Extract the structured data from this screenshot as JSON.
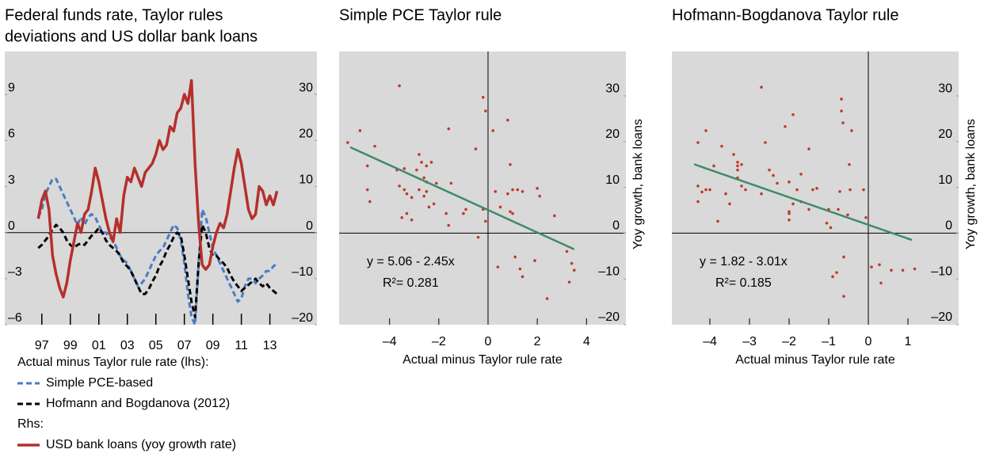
{
  "chart_data": [
    {
      "type": "line",
      "title": [
        "Federal funds rate, Taylor rules",
        "deviations and US dollar bank loans"
      ],
      "x": [
        1996.75,
        1997,
        1997.25,
        1997.5,
        1997.75,
        1998,
        1998.25,
        1998.5,
        1998.75,
        1999,
        1999.25,
        1999.5,
        1999.75,
        2000,
        2000.25,
        2000.5,
        2000.75,
        2001,
        2001.25,
        2001.5,
        2001.75,
        2002,
        2002.25,
        2002.5,
        2002.75,
        2003,
        2003.25,
        2003.5,
        2003.75,
        2004,
        2004.25,
        2004.5,
        2004.75,
        2005,
        2005.25,
        2005.5,
        2005.75,
        2006,
        2006.25,
        2006.5,
        2006.75,
        2007,
        2007.25,
        2007.5,
        2007.75,
        2008,
        2008.25,
        2008.5,
        2008.75,
        2009,
        2009.25,
        2009.5,
        2009.75,
        2010,
        2010.25,
        2010.5,
        2010.75,
        2011,
        2011.25,
        2011.5,
        2011.75,
        2012,
        2012.25,
        2012.5,
        2012.75,
        2013,
        2013.25,
        2013.5
      ],
      "xlim": [
        1994.4,
        2016.3
      ],
      "xticks": [
        {
          "value": 1997,
          "label": "97"
        },
        {
          "value": 1999,
          "label": "99"
        },
        {
          "value": 2001,
          "label": "01"
        },
        {
          "value": 2003,
          "label": "03"
        },
        {
          "value": 2005,
          "label": "05"
        },
        {
          "value": 2007,
          "label": "07"
        },
        {
          "value": 2009,
          "label": "09"
        },
        {
          "value": 2011,
          "label": "11"
        },
        {
          "value": 2013,
          "label": "13"
        }
      ],
      "ylim": [
        -6,
        11.8
      ],
      "yticks": [
        {
          "value": -6,
          "label": "–6"
        },
        {
          "value": -3,
          "label": "–3"
        },
        0,
        3,
        6,
        9
      ],
      "y2lim": [
        -20,
        39.3
      ],
      "y2ticks": [
        {
          "value": -20,
          "label": "–20"
        },
        {
          "value": -10,
          "label": "–10"
        },
        0,
        10,
        20,
        30
      ],
      "lhs_legend_title": "Actual minus Taylor rule rate (lhs):",
      "rhs_legend_title": "Rhs:",
      "series": [
        {
          "name": "Simple PCE-based",
          "color": "#4a7cc4",
          "dashed": true,
          "values": [
            1,
            1.5,
            2.5,
            3,
            3.5,
            3.5,
            3,
            2.5,
            2,
            1.5,
            1,
            0.5,
            1,
            0.5,
            1,
            1.2,
            1,
            0.5,
            0,
            0,
            -0.3,
            -0.5,
            -1,
            -1.5,
            -1.8,
            -2,
            -2.5,
            -3,
            -3.5,
            -3.3,
            -3,
            -2.5,
            -2,
            -1.5,
            -1.2,
            -1,
            -0.5,
            0,
            0.5,
            0.3,
            -0.5,
            -2,
            -4,
            -5.5,
            -6,
            -2,
            1.5,
            1,
            0,
            -1,
            -1.5,
            -2,
            -2.5,
            -3,
            -3.5,
            -4,
            -4.5,
            -4.3,
            -3.5,
            -3,
            -3,
            -3.3,
            -3,
            -2.8,
            -2.5,
            -2.5,
            -2.2,
            -2
          ]
        },
        {
          "name": "Hofmann and Bogdanova (2012)",
          "color": "#000000",
          "dashed": true,
          "values": [
            -1,
            -0.8,
            -0.5,
            -0.2,
            0.2,
            0.5,
            0.3,
            0,
            -0.5,
            -0.8,
            -1,
            -0.8,
            -0.7,
            -0.8,
            -0.5,
            -0.2,
            0,
            0.3,
            0,
            -0.5,
            -0.8,
            -1,
            -1.2,
            -1.5,
            -2,
            -2.2,
            -2.5,
            -3,
            -3.5,
            -4,
            -4,
            -3.7,
            -3.2,
            -2.8,
            -2.2,
            -1.8,
            -1.2,
            -0.8,
            -0.3,
            0,
            -0.2,
            -1.5,
            -3,
            -4.5,
            -5.5,
            -2,
            0.5,
            0,
            -1,
            -1.5,
            -1.5,
            -1.8,
            -2,
            -2.3,
            -2.8,
            -3.2,
            -3.5,
            -3.8,
            -3.6,
            -3.4,
            -3.2,
            -3,
            -3.3,
            -3.5,
            -3.3,
            -3.6,
            -3.8,
            -4
          ]
        },
        {
          "name": "USD bank loans (yoy growth rate)",
          "color": "#b5302b",
          "dashed": false,
          "axis": "y2",
          "values": [
            3,
            7,
            9,
            5,
            -5,
            -9,
            -12,
            -14,
            -11,
            -6,
            -2,
            2,
            0,
            4,
            5,
            9,
            14,
            11,
            7,
            3,
            0,
            -2,
            3,
            0,
            8,
            12,
            11,
            14,
            12,
            10,
            13,
            14,
            15,
            17,
            20,
            18,
            19,
            23,
            22,
            26,
            27,
            30,
            28,
            33,
            15,
            2,
            -7,
            -8,
            -7,
            -3,
            0,
            2,
            1,
            4,
            9,
            14,
            18,
            15,
            10,
            5,
            3,
            4,
            10,
            9,
            6,
            8,
            6,
            9
          ]
        }
      ]
    },
    {
      "type": "scatter",
      "title": "Simple PCE Taylor rule",
      "xlabel": "Actual minus Taylor rule rate",
      "ylabel": "Yoy growth, bank loans",
      "xlim": [
        -6.05,
        5.6
      ],
      "xticks": [
        {
          "value": -4,
          "label": "–4"
        },
        {
          "value": -2,
          "label": "–2"
        },
        0,
        2,
        4
      ],
      "ylim": [
        -20,
        39.7
      ],
      "yticks": [
        {
          "value": -20,
          "label": "–20"
        },
        {
          "value": -10,
          "label": "–10"
        },
        0,
        10,
        20,
        30
      ],
      "point_color": "#c0392b",
      "line_color": "#3f8a6c",
      "intercept": 5.06,
      "slope": -2.45,
      "fit_xrange": [
        -5.6,
        3.5
      ],
      "equation": "y = 5.06 - 2.45x",
      "r_squared_label": "R²= 0.281",
      "x": [
        -5.7,
        -5.2,
        -4.9,
        -4.9,
        -4.8,
        -4.6,
        -3.6,
        -3.7,
        -3.4,
        -3.6,
        -3.4,
        -3.3,
        -3.1,
        -3.5,
        -3.3,
        -3.1,
        -2.9,
        -2.8,
        -2.7,
        -2.5,
        -2.3,
        -2.6,
        -2.5,
        -2.8,
        -2.6,
        -2.5,
        -2.2,
        -2.4,
        -2.1,
        -1.7,
        -1.6,
        -1.5,
        -1.6,
        -1.0,
        -0.9,
        -0.5,
        -0.4,
        -0.2,
        -0.1,
        -0.2,
        -0.1,
        0.2,
        0.3,
        0.5,
        0.8,
        0.8,
        0.9,
        1.0,
        0.9,
        1.1,
        1.3,
        1.4,
        1.0,
        1.2,
        1.4,
        2.0,
        2.1,
        1.9,
        2.4,
        2.7,
        3.2,
        3.3,
        3.4,
        3.5,
        0.4
      ],
      "y": [
        19.8,
        22.4,
        14.7,
        9.5,
        6.9,
        19.0,
        32.2,
        13.8,
        14.1,
        10.3,
        9.5,
        8.6,
        7.8,
        3.4,
        4.3,
        2.9,
        13.8,
        17.2,
        15.5,
        14.7,
        15.5,
        12.1,
        11.2,
        9.5,
        8.1,
        9.1,
        6.4,
        5.7,
        10.9,
        4.3,
        1.7,
        10.9,
        22.8,
        4.3,
        5.2,
        18.4,
        -0.9,
        5.2,
        2.6,
        29.7,
        26.7,
        22.4,
        9.1,
        5.7,
        24.7,
        8.6,
        15.0,
        9.5,
        4.7,
        -5.2,
        -7.8,
        -9.5,
        4.3,
        9.5,
        9.1,
        9.8,
        8.1,
        -6.0,
        -14.3,
        3.8,
        -4.0,
        -10.7,
        -6.6,
        -8.1,
        -7.4
      ]
    },
    {
      "type": "scatter",
      "title": "Hofmann-Bogdanova Taylor rule",
      "xlabel": "Actual minus Taylor rule rate",
      "ylabel": "Yoy growth, bank loans",
      "xlim": [
        -4.96,
        2.28
      ],
      "xticks": [
        {
          "value": -4,
          "label": "–4"
        },
        {
          "value": -3,
          "label": "–3"
        },
        {
          "value": -2,
          "label": "–2"
        },
        {
          "value": -1,
          "label": "–1"
        },
        0,
        1
      ],
      "ylim": [
        -20,
        39.7
      ],
      "yticks": [
        {
          "value": -20,
          "label": "–20"
        },
        {
          "value": -10,
          "label": "–10"
        },
        0,
        10,
        20,
        30
      ],
      "point_color": "#c0392b",
      "line_color": "#3f8a6c",
      "intercept": 1.82,
      "slope": -3.01,
      "fit_xrange": [
        -4.4,
        1.1
      ],
      "equation": "y = 1.82 - 3.01x",
      "r_squared_label": "R²= 0.185",
      "x": [
        -4.3,
        -4.1,
        -4.2,
        -4.3,
        -4.3,
        -4.1,
        -4.0,
        -3.9,
        -3.8,
        -3.7,
        -3.6,
        -3.5,
        -3.4,
        -3.3,
        -3.3,
        -3.3,
        -3.2,
        -3.1,
        -3.2,
        -3.3,
        -2.7,
        -2.7,
        -2.6,
        -2.5,
        -2.4,
        -2.3,
        -2.1,
        -2.0,
        -2.0,
        -2.0,
        -2.0,
        -1.9,
        -1.8,
        -1.7,
        -1.9,
        -1.7,
        -1.5,
        -1.5,
        -1.4,
        -1.3,
        -1.0,
        -0.95,
        -0.9,
        -0.8,
        -0.76,
        -0.72,
        -0.68,
        -0.68,
        -0.64,
        -0.62,
        -0.62,
        -0.52,
        -0.48,
        -0.42,
        -0.46,
        -0.12,
        -0.06,
        0.08,
        0.28,
        0.32,
        0.58,
        0.87,
        1.17,
        -1.05
      ],
      "y": [
        19.8,
        22.4,
        9.0,
        10.3,
        6.9,
        9.5,
        9.5,
        14.7,
        2.6,
        19.0,
        8.6,
        6.4,
        17.2,
        15.5,
        14.7,
        12.1,
        10.3,
        9.5,
        15.0,
        13.8,
        31.9,
        8.6,
        19.8,
        13.8,
        12.6,
        10.9,
        23.3,
        4.3,
        4.7,
        2.9,
        11.2,
        6.4,
        9.5,
        12.9,
        25.9,
        6.9,
        18.4,
        5.2,
        9.5,
        9.8,
        5.2,
        1.2,
        -9.5,
        -8.6,
        5.2,
        9.1,
        29.3,
        26.7,
        24.1,
        -13.8,
        -5.2,
        4.0,
        15.0,
        22.4,
        9.5,
        9.5,
        3.4,
        -7.4,
        -6.9,
        -10.9,
        -8.1,
        -8.1,
        -7.8,
        2.2
      ]
    }
  ]
}
